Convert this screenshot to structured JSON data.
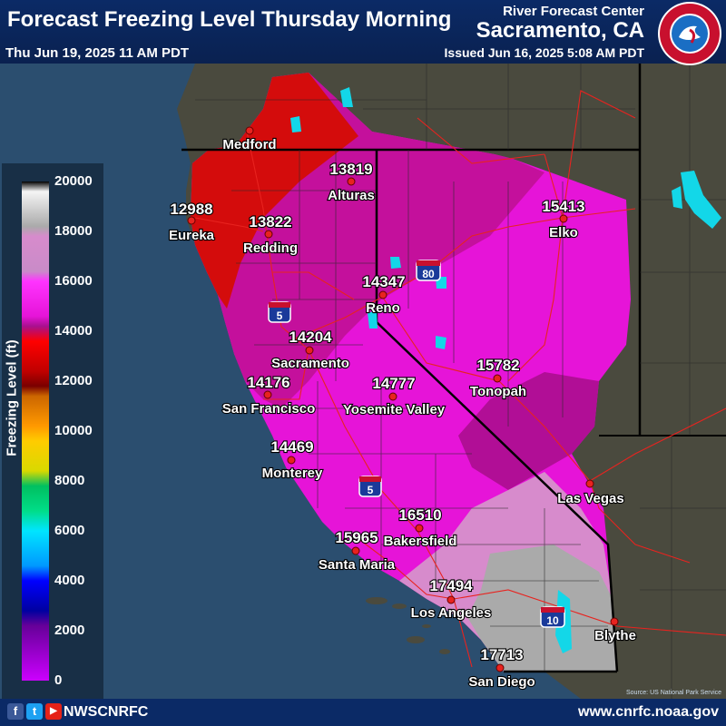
{
  "header": {
    "title": "Forecast Freezing Level Thursday Morning",
    "valid_time": "Thu Jun 19, 2025 11 AM PDT",
    "agency": "River Forecast Center",
    "location": "Sacramento, CA",
    "issued": "Issued Jun 16, 2025 5:08 AM PDT",
    "logo_text": "NATIONAL WEATHER SERVICE"
  },
  "legend": {
    "title": "Freezing Level (ft)",
    "ticks": [
      "20000",
      "18000",
      "16000",
      "14000",
      "12000",
      "10000",
      "8000",
      "6000",
      "4000",
      "2000",
      "0"
    ]
  },
  "cities": [
    {
      "name": "Medford",
      "value": ""
    },
    {
      "name": "Eureka",
      "value": "12988"
    },
    {
      "name": "Redding",
      "value": "13822"
    },
    {
      "name": "Alturas",
      "value": "13819"
    },
    {
      "name": "Reno",
      "value": "14347"
    },
    {
      "name": "Elko",
      "value": "15413"
    },
    {
      "name": "Sacramento",
      "value": "14204"
    },
    {
      "name": "San Francisco",
      "value": "14176"
    },
    {
      "name": "Yosemite Valley",
      "value": "14777"
    },
    {
      "name": "Tonopah",
      "value": "15782"
    },
    {
      "name": "Monterey",
      "value": "14469"
    },
    {
      "name": "Bakersfield",
      "value": "16510"
    },
    {
      "name": "Santa Maria",
      "value": "15965"
    },
    {
      "name": "Las Vegas",
      "value": ""
    },
    {
      "name": "Los Angeles",
      "value": "17494"
    },
    {
      "name": "Blythe",
      "value": ""
    },
    {
      "name": "San Diego",
      "value": "17713"
    }
  ],
  "highways": {
    "i5_a": "5",
    "i80": "80",
    "i5_b": "5",
    "i10": "10"
  },
  "footer": {
    "social_handle": "NWSCNRFC",
    "website": "www.cnrfc.noaa.gov",
    "fb": "f",
    "tw": "t",
    "yt": "▶"
  },
  "source_note": "Source: US National Park Service",
  "colors": {
    "header_bg": "#0b2a66",
    "ocean": "#2a4d6e",
    "land": "#45453a",
    "freezing_red": "#d40c0c",
    "magenta": "#e614d8",
    "gray": "#a9a9a9"
  }
}
